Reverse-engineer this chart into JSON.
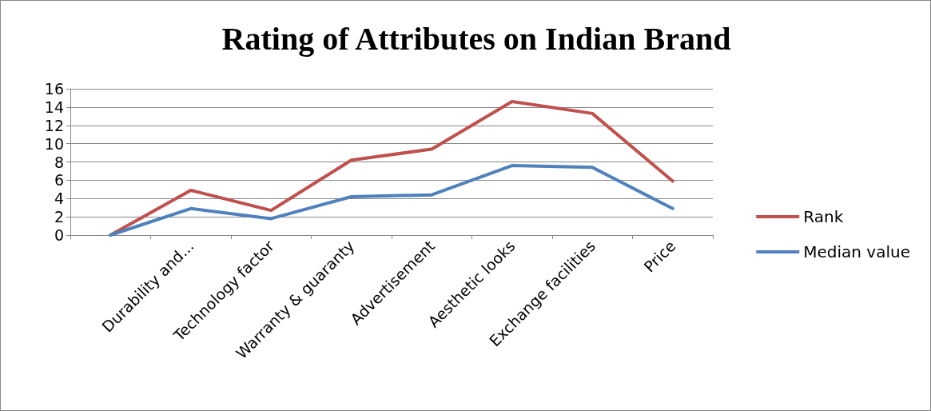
{
  "chart_data": {
    "type": "line",
    "title": "Rating of Attributes on Indian Brand",
    "categories": [
      null,
      "Durability and...",
      "Technology factor",
      "Warranty & guaranty",
      "Advertisement",
      "Aesthetic looks",
      "Exchange facilities",
      "Price"
    ],
    "series": [
      {
        "name": "Rank",
        "color": "#c0504d",
        "values": [
          0,
          4.9,
          2.7,
          8.2,
          9.4,
          14.6,
          13.3,
          5.9
        ]
      },
      {
        "name": "Median value",
        "color": "#4f81bd",
        "values": [
          0,
          2.9,
          1.8,
          4.2,
          4.4,
          7.6,
          7.4,
          2.9
        ]
      }
    ],
    "ylim": [
      0,
      16
    ],
    "yticks": [
      0,
      2,
      4,
      6,
      8,
      10,
      12,
      14,
      16
    ],
    "grid": "y",
    "legend": "right",
    "marker": "none",
    "line_style": "solid"
  }
}
